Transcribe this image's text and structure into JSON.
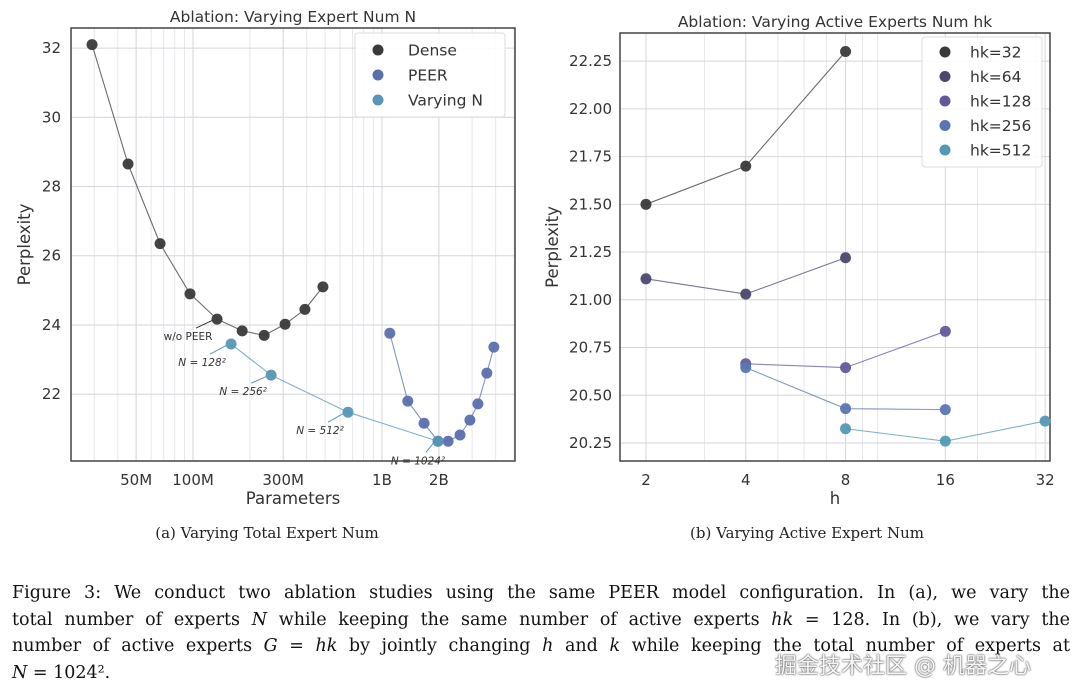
{
  "chart_data": [
    {
      "type": "scatter",
      "title": "Ablation: Varying Expert Num N",
      "xlabel": "Parameters",
      "ylabel": "Perplexity",
      "xscale": "log",
      "xlim": [
        22600000,
        5060000000
      ],
      "ylim": [
        20.07,
        32.58
      ],
      "xticks": [
        {
          "v": 50000000,
          "label": "50M"
        },
        {
          "v": 100000000,
          "label": "100M"
        },
        {
          "v": 300000000,
          "label": "300M"
        },
        {
          "v": 1000000000,
          "label": "1B"
        },
        {
          "v": 2000000000,
          "label": "2B"
        }
      ],
      "yticks": [
        {
          "v": 22,
          "label": "22"
        },
        {
          "v": 24,
          "label": "24"
        },
        {
          "v": 26,
          "label": "26"
        },
        {
          "v": 28,
          "label": "28"
        },
        {
          "v": 30,
          "label": "30"
        },
        {
          "v": 32,
          "label": "32"
        }
      ],
      "grid": true,
      "legend_position": "top-right",
      "series": [
        {
          "name": "Dense",
          "color": "#3a3a3a",
          "x": [
            29200000,
            45300000,
            66900000,
            96400000,
            134000000,
            182000000,
            238000000,
            307000000,
            391000000,
            487000000
          ],
          "y": [
            32.1,
            28.65,
            26.35,
            24.9,
            24.17,
            23.83,
            23.7,
            24.02,
            24.45,
            25.1
          ]
        },
        {
          "name": "PEER",
          "color": "#5a6fae",
          "x": [
            1100000000,
            1370000000,
            1670000000,
            1980000000,
            2240000000,
            2590000000,
            2920000000,
            3220000000,
            3590000000,
            3910000000
          ],
          "y": [
            23.76,
            21.8,
            21.16,
            20.64,
            20.64,
            20.82,
            21.25,
            21.72,
            22.61,
            23.36
          ]
        },
        {
          "name": "Varying N",
          "color": "#5597b5",
          "x": [
            159000000,
            259000000,
            661000000,
            1980000000
          ],
          "y": [
            23.45,
            22.55,
            21.48,
            20.64
          ]
        }
      ],
      "annotations": [
        {
          "text": "w/o PEER",
          "series": 0,
          "point": 4
        },
        {
          "text": "N = 128²",
          "series": 2,
          "point": 0
        },
        {
          "text": "N = 256²",
          "series": 2,
          "point": 1
        },
        {
          "text": "N = 512²",
          "series": 2,
          "point": 2
        },
        {
          "text": "N = 1024²",
          "series": 2,
          "point": 3
        }
      ],
      "subcaption": "(a) Varying Total Expert Num"
    },
    {
      "type": "scatter",
      "title": "Ablation: Varying Active Experts Num hk",
      "xlabel": "h",
      "ylabel": "Perplexity",
      "xscale": "log2",
      "xlim": [
        1.67,
        33.1
      ],
      "ylim": [
        20.156,
        22.397
      ],
      "xticks": [
        {
          "v": 2,
          "label": "2"
        },
        {
          "v": 4,
          "label": "4"
        },
        {
          "v": 8,
          "label": "8"
        },
        {
          "v": 16,
          "label": "16"
        },
        {
          "v": 32,
          "label": "32"
        }
      ],
      "yticks": [
        {
          "v": 20.25,
          "label": "20.25"
        },
        {
          "v": 20.5,
          "label": "20.50"
        },
        {
          "v": 20.75,
          "label": "20.75"
        },
        {
          "v": 21.0,
          "label": "21.00"
        },
        {
          "v": 21.25,
          "label": "21.25"
        },
        {
          "v": 21.5,
          "label": "21.50"
        },
        {
          "v": 21.75,
          "label": "21.75"
        },
        {
          "v": 22.0,
          "label": "22.00"
        },
        {
          "v": 22.25,
          "label": "22.25"
        }
      ],
      "grid": true,
      "legend_position": "top-right",
      "series": [
        {
          "name": "hk=32",
          "color": "#3a3a3a",
          "x": [
            2,
            4,
            8
          ],
          "y": [
            21.5,
            21.7,
            22.3
          ]
        },
        {
          "name": "hk=64",
          "color": "#4b4870",
          "x": [
            2,
            4,
            8
          ],
          "y": [
            21.11,
            21.03,
            21.22
          ]
        },
        {
          "name": "hk=128",
          "color": "#64589c",
          "x": [
            4,
            8,
            16
          ],
          "y": [
            20.665,
            20.645,
            20.835
          ]
        },
        {
          "name": "hk=256",
          "color": "#5a76b2",
          "x": [
            4,
            8,
            16
          ],
          "y": [
            20.645,
            20.43,
            20.425
          ]
        },
        {
          "name": "hk=512",
          "color": "#5498b4",
          "x": [
            8,
            16,
            32
          ],
          "y": [
            20.325,
            20.26,
            20.365
          ]
        }
      ],
      "subcaption": "(b) Varying Active Expert Num"
    }
  ],
  "caption": {
    "lines": [
      [
        {
          "t": "Figure 3: We conduct two ablation studies using the same PEER model configuration. In (a), we vary the"
        }
      ],
      [
        {
          "t": "total number of experts "
        },
        {
          "t": "N",
          "m": true
        },
        {
          "t": " while keeping the same number of active experts "
        },
        {
          "t": "hk",
          "m": true
        },
        {
          "t": " = 128. In (b), we vary the"
        }
      ],
      [
        {
          "t": "number of active experts "
        },
        {
          "t": "G",
          "m": true
        },
        {
          "t": " = "
        },
        {
          "t": "hk",
          "m": true
        },
        {
          "t": " by jointly changing "
        },
        {
          "t": "h",
          "m": true
        },
        {
          "t": " and "
        },
        {
          "t": "k",
          "m": true
        },
        {
          "t": " while keeping the total number of experts at"
        }
      ],
      [
        {
          "t": "N",
          "m": true
        },
        {
          "t": " = 1024²."
        }
      ]
    ]
  },
  "watermark": "掘金技术社区 @ 机器之心"
}
